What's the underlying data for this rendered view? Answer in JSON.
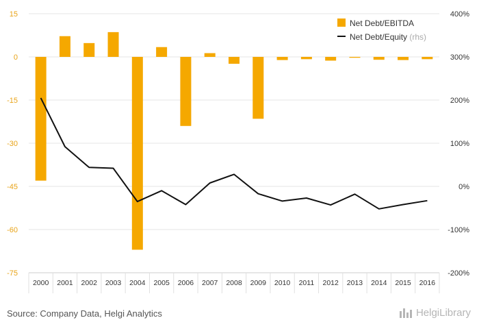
{
  "chart_data": {
    "type": "bar",
    "categories": [
      "2000",
      "2001",
      "2002",
      "2003",
      "2004",
      "2005",
      "2006",
      "2007",
      "2008",
      "2009",
      "2010",
      "2011",
      "2012",
      "2013",
      "2014",
      "2015",
      "2016"
    ],
    "series": [
      {
        "name": "Net Debt/EBITDA",
        "type": "bar",
        "axis": "left",
        "color": "#f5a800",
        "values": [
          -43,
          7.2,
          4.8,
          8.6,
          -67,
          3.4,
          -24,
          1.3,
          -2.4,
          -21.5,
          -1.1,
          -0.8,
          -1.3,
          -0.3,
          -1.0,
          -1.1,
          -0.8
        ]
      },
      {
        "name": "Net Debt/Equity",
        "name_suffix": "(rhs)",
        "type": "line",
        "axis": "right",
        "color": "#111111",
        "values": [
          205,
          92,
          44,
          42,
          -35,
          -10,
          -42,
          8,
          28,
          -17,
          -34,
          -27,
          -43,
          -18,
          -52,
          -42,
          -33
        ]
      }
    ],
    "y_left": {
      "min": -75,
      "max": 15,
      "ticks": [
        15,
        0,
        -15,
        -30,
        -45,
        -60,
        -75
      ]
    },
    "y_right": {
      "min": -200,
      "max": 400,
      "ticks": [
        400,
        300,
        200,
        100,
        0,
        -100,
        -200
      ],
      "tick_labels": [
        "400%",
        "300%",
        "200%",
        "100%",
        "0%",
        "-100%",
        "-200%"
      ]
    },
    "legend_position": "top-right",
    "grid": true
  },
  "footer": {
    "source": "Source: Company Data, Helgi Analytics",
    "brand": "HelgiLibrary"
  }
}
